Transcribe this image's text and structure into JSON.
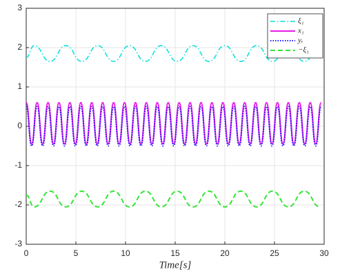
{
  "chart_data": {
    "type": "line",
    "xlabel": "Time[s]",
    "xlim": [
      0,
      30
    ],
    "xticks": [
      0,
      5,
      10,
      15,
      20,
      25,
      30
    ],
    "ylim": [
      -3,
      3
    ],
    "yticks": [
      -3,
      -2,
      -1,
      0,
      1,
      2,
      3
    ],
    "grid": true,
    "legend": "upper right",
    "series": [
      {
        "name": "ξ₁",
        "color": "#00dede",
        "style": "-.",
        "x": [
          0,
          0.8,
          2.4,
          4,
          5.6,
          7.2,
          8.8,
          10.4,
          12,
          13.6,
          15.2,
          16.8,
          18.4,
          20,
          21.6,
          23.2,
          24.8,
          26.4,
          28,
          29.6
        ],
        "values": [
          1.75,
          2.05,
          1.65,
          2.05,
          1.65,
          2.05,
          1.65,
          2.05,
          1.65,
          2.05,
          1.65,
          2.05,
          1.65,
          2.05,
          1.65,
          2.05,
          1.65,
          2.05,
          1.65,
          2.05
        ]
      },
      {
        "name": "x₁",
        "color": "#e619e6",
        "style": "-",
        "x": [
          0,
          0.55,
          1.1,
          1.65,
          2.2,
          2.75,
          3.3,
          3.85,
          4.4,
          4.95,
          5.5,
          6.05,
          6.6,
          7.15,
          7.7,
          8.25,
          8.8,
          9.35,
          9.9,
          10.45,
          11,
          11.55,
          12.1,
          12.65,
          13.2,
          13.75,
          14.3,
          14.85,
          15.4,
          15.95,
          16.5,
          17.05,
          17.6,
          18.15,
          18.7,
          19.25,
          19.8,
          20.35,
          20.9,
          21.45,
          22,
          22.55,
          23.1,
          23.65,
          24.2,
          24.75,
          25.3,
          25.85,
          26.4,
          26.95,
          27.5,
          28.05,
          28.6,
          29.15,
          29.7
        ],
        "values": [
          0.6,
          -0.45,
          0.6,
          -0.45,
          0.6,
          -0.45,
          0.6,
          -0.45,
          0.6,
          -0.45,
          0.6,
          -0.45,
          0.6,
          -0.45,
          0.6,
          -0.45,
          0.6,
          -0.45,
          0.6,
          -0.45,
          0.6,
          -0.45,
          0.6,
          -0.45,
          0.6,
          -0.45,
          0.6,
          -0.45,
          0.6,
          -0.45,
          0.6,
          -0.45,
          0.6,
          -0.45,
          0.6,
          -0.45,
          0.6,
          -0.45,
          0.6,
          -0.45,
          0.6,
          -0.45,
          0.6,
          -0.45,
          0.6,
          -0.45,
          0.6,
          -0.45,
          0.6,
          -0.45,
          0.6,
          -0.45,
          0.6,
          -0.45,
          0.6
        ]
      },
      {
        "name": "yᵣ",
        "color": "#1a1aff",
        "style": ":",
        "x": [
          0,
          0.55,
          1.1,
          1.65,
          2.2,
          2.75,
          3.3,
          3.85,
          4.4,
          4.95,
          5.5,
          6.05,
          6.6,
          7.15,
          7.7,
          8.25,
          8.8,
          9.35,
          9.9,
          10.45,
          11,
          11.55,
          12.1,
          12.65,
          13.2,
          13.75,
          14.3,
          14.85,
          15.4,
          15.95,
          16.5,
          17.05,
          17.6,
          18.15,
          18.7,
          19.25,
          19.8,
          20.35,
          20.9,
          21.45,
          22,
          22.55,
          23.1,
          23.65,
          24.2,
          24.75,
          25.3,
          25.85,
          26.4,
          26.95,
          27.5,
          28.05,
          28.6,
          29.15,
          29.7
        ],
        "values": [
          0.5,
          -0.5,
          0.5,
          -0.5,
          0.5,
          -0.5,
          0.5,
          -0.5,
          0.5,
          -0.5,
          0.5,
          -0.5,
          0.5,
          -0.5,
          0.5,
          -0.5,
          0.5,
          -0.5,
          0.5,
          -0.5,
          0.5,
          -0.5,
          0.5,
          -0.5,
          0.5,
          -0.5,
          0.5,
          -0.5,
          0.5,
          -0.5,
          0.5,
          -0.5,
          0.5,
          -0.5,
          0.5,
          -0.5,
          0.5,
          -0.5,
          0.5,
          -0.5,
          0.5,
          -0.5,
          0.5,
          -0.5,
          0.5,
          -0.5,
          0.5,
          -0.5,
          0.5,
          -0.5,
          0.5,
          -0.5,
          0.5,
          -0.5,
          0.5
        ]
      },
      {
        "name": "−ξ₁",
        "color": "#33e633",
        "style": "--",
        "x": [
          0,
          0.8,
          2.4,
          4,
          5.6,
          7.2,
          8.8,
          10.4,
          12,
          13.6,
          15.2,
          16.8,
          18.4,
          20,
          21.6,
          23.2,
          24.8,
          26.4,
          28,
          29.6
        ],
        "values": [
          -1.75,
          -2.05,
          -1.65,
          -2.05,
          -1.65,
          -2.05,
          -1.65,
          -2.05,
          -1.65,
          -2.05,
          -1.65,
          -2.05,
          -1.65,
          -2.05,
          -1.65,
          -2.05,
          -1.65,
          -2.05,
          -1.65,
          -2.05
        ]
      }
    ]
  }
}
